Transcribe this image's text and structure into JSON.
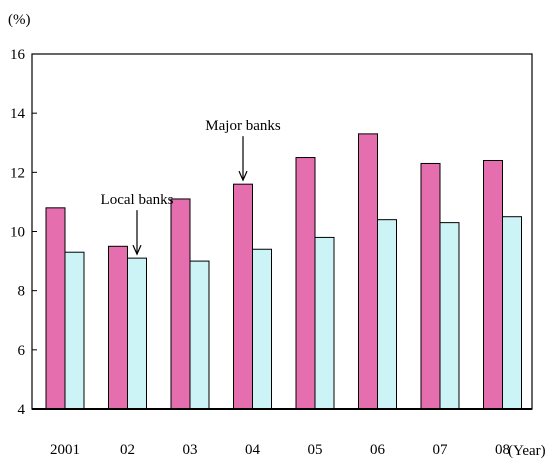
{
  "chart_data": {
    "type": "bar",
    "title": "",
    "ylabel": "(%)",
    "xlabel": "(Year)",
    "ylim": [
      4,
      16
    ],
    "yticks": [
      4,
      6,
      8,
      10,
      12,
      14,
      16
    ],
    "categories": [
      "2001",
      "02",
      "03",
      "04",
      "05",
      "06",
      "07",
      "08"
    ],
    "series": [
      {
        "name": "Major banks",
        "values": [
          10.8,
          9.5,
          11.1,
          11.6,
          12.5,
          13.3,
          12.3,
          12.4
        ]
      },
      {
        "name": "Local banks",
        "values": [
          9.3,
          9.1,
          9.0,
          9.4,
          9.8,
          10.4,
          10.3,
          10.5
        ]
      }
    ],
    "annotations": [
      {
        "text": "Local banks",
        "series": "Local banks",
        "category": "02"
      },
      {
        "text": "Major banks",
        "series": "Major banks",
        "category": "04"
      }
    ],
    "grid": false,
    "legend": "none"
  },
  "colors": {
    "major": "#e56fae",
    "local": "#ccf3f5",
    "outline": "#000000"
  }
}
